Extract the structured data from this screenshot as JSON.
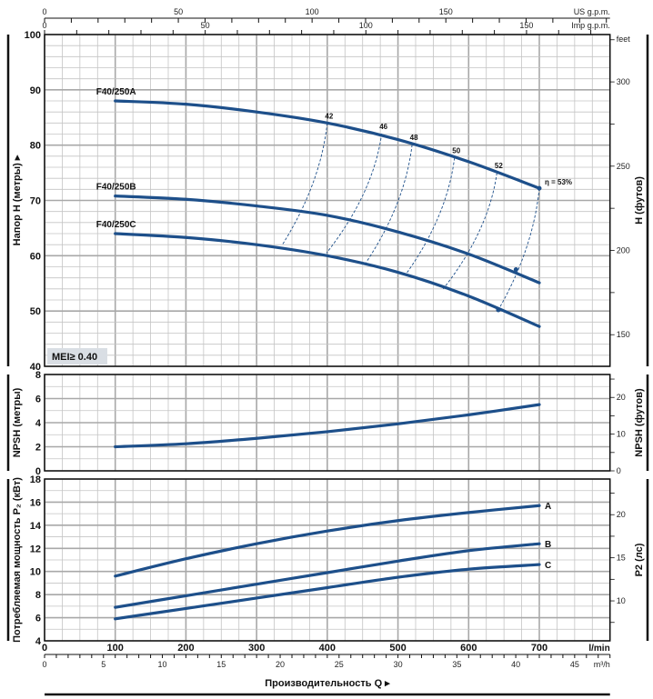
{
  "chart_data": [
    {
      "type": "line",
      "title": "",
      "xlabel": "Производительность Q",
      "x_unit": "l/min",
      "xlim": [
        0,
        800
      ],
      "x_ticks": [
        0,
        100,
        200,
        300,
        400,
        500,
        600,
        700
      ],
      "ylabel": "Напор H (метры)",
      "ylim": [
        40,
        100
      ],
      "y_ticks": [
        40,
        50,
        60,
        70,
        80,
        90,
        100
      ],
      "y2label": "H (футов)",
      "y2_unit": "feet",
      "y2_ticks": [
        150,
        200,
        250,
        300
      ],
      "grid": true,
      "series": [
        {
          "name": "F40/250A",
          "x": [
            100,
            200,
            300,
            400,
            500,
            600,
            700
          ],
          "y": [
            88,
            87.4,
            86,
            84,
            81,
            77,
            72.2
          ]
        },
        {
          "name": "F40/250B",
          "x": [
            100,
            200,
            300,
            400,
            500,
            600,
            700
          ],
          "y": [
            70.8,
            70.2,
            69,
            67.3,
            64.3,
            60.3,
            55.1
          ]
        },
        {
          "name": "F40/250C",
          "x": [
            100,
            200,
            300,
            400,
            500,
            600,
            700
          ],
          "y": [
            64,
            63.3,
            62,
            60,
            57,
            52.7,
            47.2
          ]
        }
      ],
      "efficiency_curves": [
        {
          "label": "42",
          "from": [
            400,
            84.0
          ],
          "to": [
            336,
            61.9
          ]
        },
        {
          "label": "46",
          "from": [
            477,
            82.1
          ],
          "to": [
            399,
            60.5
          ]
        },
        {
          "label": "48",
          "from": [
            520,
            80.1
          ],
          "to": [
            455,
            58.8
          ]
        },
        {
          "label": "50",
          "from": [
            580,
            77.7
          ],
          "to": [
            511,
            56.6
          ]
        },
        {
          "label": "52",
          "from": [
            640,
            75.0
          ],
          "to": [
            564,
            54.0
          ]
        },
        {
          "label": "η = 53%",
          "from": [
            700,
            72.2
          ],
          "to": [
            642,
            50.2
          ]
        }
      ],
      "annotation": "MEI≥ 0.40"
    },
    {
      "type": "line",
      "ylabel": "NPSH (метры)",
      "ylim": [
        0,
        8
      ],
      "y_ticks": [
        0,
        2,
        4,
        6,
        8
      ],
      "y2label": "NPSH (футов)",
      "y2_ticks": [
        0,
        10,
        20
      ],
      "grid": true,
      "series": [
        {
          "x": [
            100,
            200,
            300,
            400,
            500,
            600,
            700
          ],
          "y": [
            2.0,
            2.25,
            2.7,
            3.25,
            3.9,
            4.65,
            5.5
          ]
        }
      ]
    },
    {
      "type": "line",
      "ylabel": "Потребляемая мощность P₂ (кВт)",
      "ylim": [
        4,
        18
      ],
      "y_ticks": [
        4,
        6,
        8,
        10,
        12,
        14,
        16,
        18
      ],
      "y2label": "P2 (лс)",
      "y2_ticks": [
        10,
        15,
        20
      ],
      "grid": true,
      "series": [
        {
          "name": "A",
          "x": [
            100,
            200,
            300,
            400,
            500,
            600,
            700
          ],
          "y": [
            9.6,
            11.1,
            12.4,
            13.5,
            14.4,
            15.1,
            15.7
          ]
        },
        {
          "name": "B",
          "x": [
            100,
            200,
            300,
            400,
            500,
            600,
            700
          ],
          "y": [
            6.9,
            7.9,
            8.9,
            9.9,
            10.9,
            11.8,
            12.4
          ]
        },
        {
          "name": "C",
          "x": [
            100,
            200,
            300,
            400,
            500,
            600,
            700
          ],
          "y": [
            5.9,
            6.8,
            7.7,
            8.6,
            9.5,
            10.2,
            10.6
          ]
        }
      ]
    }
  ],
  "axes": {
    "us_gpm": {
      "unit": "US g.p.m.",
      "ticks": [
        0,
        50,
        100,
        150
      ]
    },
    "imp_gpm": {
      "unit": "Imp g.p.m.",
      "ticks": [
        0,
        50,
        100,
        150
      ]
    },
    "lmin": {
      "unit": "l/min"
    },
    "m3h": {
      "unit": "m³/h",
      "ticks": [
        0,
        5,
        10,
        15,
        20,
        25,
        30,
        35,
        40,
        45
      ]
    },
    "x_title": "Производительность Q ▸",
    "head_title": "Напор H (метры) ▸"
  },
  "colors": {
    "curve": "#1d4f8a",
    "grid": "#c4c4c4",
    "grid_major": "#a8a8a8",
    "mei_box": "#d9dee4"
  }
}
